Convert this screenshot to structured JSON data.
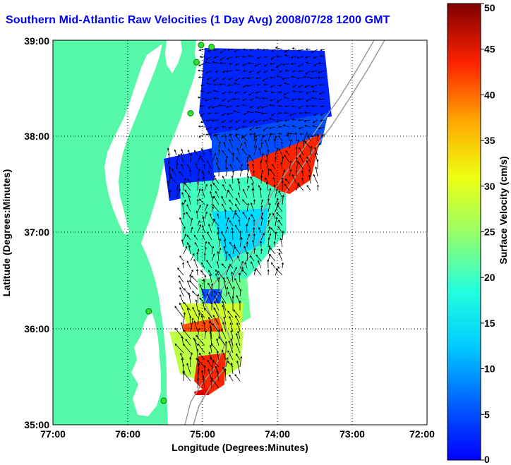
{
  "title": "Southern Mid-Atlantic Raw Velocities (1 Day Avg) 2008/07/28 1200 GMT",
  "x_axis": {
    "label": "Longitude (Degrees:Minutes)",
    "ticks": [
      "77:00",
      "76:00",
      "75:00",
      "74:00",
      "73:00",
      "72:00"
    ]
  },
  "y_axis": {
    "label": "Latitude (Degrees:Minutes)",
    "ticks": [
      "39:00",
      "38:00",
      "37:00",
      "36:00",
      "35:00"
    ]
  },
  "colorbar": {
    "label": "Surface Velocity (cm/s)",
    "min": 0,
    "max": 50,
    "ticks": [
      "50",
      "45",
      "40",
      "35",
      "30",
      "25",
      "20",
      "15",
      "10",
      "5",
      "0"
    ]
  },
  "colors": {
    "land": "#55f7a8",
    "title": "#0000ff",
    "station": "#33dd33",
    "bathymetry": "#9a9a9a",
    "grid": "#000000"
  },
  "stations": [
    {
      "lon": -74.88,
      "lat": 38.93
    },
    {
      "lon": -75.08,
      "lat": 38.77
    },
    {
      "lon": -75.16,
      "lat": 38.24
    },
    {
      "lon": -75.02,
      "lat": 38.95
    },
    {
      "lon": -75.72,
      "lat": 36.18
    },
    {
      "lon": -75.52,
      "lat": 35.25
    }
  ]
}
